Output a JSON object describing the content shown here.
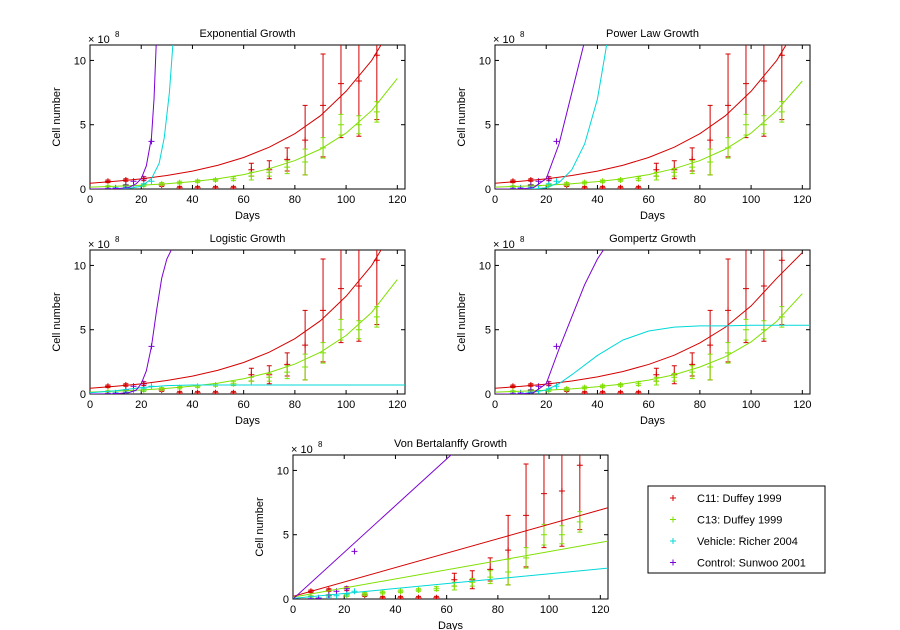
{
  "chart_data": {
    "type": "scatter",
    "xlim": [
      0,
      123
    ],
    "ylim": [
      0,
      11.2
    ],
    "xticks": [
      0,
      20,
      40,
      60,
      80,
      100,
      120
    ],
    "yticks": [
      0,
      5,
      10
    ],
    "y_multiplier": "× 10",
    "y_exponent": "8",
    "legend": "lower right",
    "series": [
      {
        "name": "C11: Duffey 1999",
        "color": "#d40000",
        "x": [
          7,
          14,
          21,
          28,
          35,
          42,
          49,
          56,
          63,
          70,
          77,
          84,
          91,
          98,
          105,
          112
        ],
        "values": [
          0.6,
          0.7,
          0.8,
          0.3,
          0.1,
          0.1,
          0.1,
          0.1,
          1.5,
          1.5,
          2.3,
          3.8,
          6.5,
          8.2,
          8.4,
          10.4
        ],
        "errors": [
          0.1,
          0.1,
          0.15,
          0.1,
          0.1,
          0.1,
          0.1,
          0.1,
          0.5,
          0.7,
          0.9,
          2.7,
          4.0,
          4.2,
          4.3,
          5.0
        ]
      },
      {
        "name": "C13: Duffey 1999",
        "color": "#7fe000",
        "x": [
          7,
          14,
          21,
          28,
          35,
          42,
          49,
          56,
          63,
          70,
          77,
          84,
          91,
          98,
          105,
          112
        ],
        "values": [
          0.2,
          0.3,
          0.3,
          0.4,
          0.5,
          0.6,
          0.7,
          0.8,
          1.0,
          1.3,
          1.7,
          2.1,
          3.2,
          5.0,
          5.0,
          6.0
        ],
        "errors": [
          0.05,
          0.05,
          0.1,
          0.1,
          0.1,
          0.1,
          0.1,
          0.15,
          0.3,
          0.3,
          0.5,
          1.0,
          0.8,
          0.8,
          0.7,
          0.8
        ]
      },
      {
        "name": "Vehicle: Richer 2004",
        "color": "#00d8d8",
        "x": [
          7,
          10,
          14,
          17,
          21,
          24
        ],
        "values": [
          0.05,
          0.1,
          0.15,
          0.25,
          0.4,
          0.6
        ]
      },
      {
        "name": "Control: Sunwoo 2001",
        "color": "#7a00d4",
        "x": [
          7,
          10,
          14,
          17,
          21,
          24
        ],
        "values": [
          0.02,
          0.05,
          0.3,
          0.6,
          0.8,
          3.7
        ]
      }
    ],
    "panels": [
      {
        "title": "Exponential Growth",
        "xlabel": "Days",
        "ylabel": "Cell number",
        "fits": [
          {
            "color": "#d40000",
            "x": [
              0,
              10,
              20,
              30,
              40,
              50,
              60,
              70,
              80,
              90,
              100,
              110,
              120
            ],
            "values": [
              0.45,
              0.6,
              0.79,
              1.05,
              1.39,
              1.85,
              2.45,
              3.25,
              4.3,
              5.7,
              7.6,
              10.0,
              13.3
            ]
          },
          {
            "color": "#7fe000",
            "x": [
              0,
              10,
              20,
              30,
              40,
              50,
              60,
              70,
              80,
              90,
              100,
              110,
              120
            ],
            "values": [
              0.15,
              0.21,
              0.29,
              0.41,
              0.57,
              0.8,
              1.12,
              1.58,
              2.21,
              3.1,
              4.35,
              6.1,
              8.6
            ]
          },
          {
            "color": "#00d8d8",
            "x": [
              0,
              10,
              15,
              20,
              24,
              27,
              29,
              31,
              33
            ],
            "values": [
              0,
              0.01,
              0.05,
              0.2,
              0.8,
              2,
              4,
              7.5,
              13
            ]
          },
          {
            "color": "#7a00d4",
            "x": [
              0,
              10,
              15,
              18,
              20,
              22,
              24,
              25,
              26
            ],
            "values": [
              0,
              0.02,
              0.1,
              0.4,
              0.8,
              1.8,
              4,
              7,
              12
            ]
          }
        ]
      },
      {
        "title": "Power Law Growth",
        "xlabel": "Days",
        "ylabel": "Cell number",
        "fits": [
          {
            "color": "#d40000",
            "x": [
              0,
              10,
              20,
              30,
              40,
              50,
              60,
              70,
              80,
              90,
              100,
              110,
              120
            ],
            "values": [
              0.45,
              0.6,
              0.79,
              1.05,
              1.39,
              1.85,
              2.45,
              3.25,
              4.3,
              5.7,
              7.6,
              10.0,
              13.3
            ]
          },
          {
            "color": "#7fe000",
            "x": [
              0,
              10,
              20,
              30,
              40,
              50,
              60,
              70,
              80,
              90,
              100,
              110,
              120
            ],
            "values": [
              0.15,
              0.21,
              0.29,
              0.41,
              0.57,
              0.8,
              1.12,
              1.58,
              2.21,
              3.1,
              4.35,
              6.1,
              8.4
            ]
          },
          {
            "color": "#00d8d8",
            "x": [
              0,
              15,
              20,
              25,
              30,
              35,
              40,
              43,
              45
            ],
            "values": [
              0,
              0,
              0.1,
              0.5,
              1.5,
              3.5,
              7,
              10.5,
              13
            ]
          },
          {
            "color": "#7a00d4",
            "x": [
              0,
              10,
              15,
              20,
              25,
              30,
              35,
              37
            ],
            "values": [
              0,
              0,
              0.1,
              0.8,
              3.5,
              7.5,
              11.5,
              13
            ]
          }
        ]
      },
      {
        "title": "Logistic Growth",
        "xlabel": "Days",
        "ylabel": "Cell number",
        "fits": [
          {
            "color": "#d40000",
            "x": [
              0,
              10,
              20,
              30,
              40,
              50,
              60,
              70,
              80,
              90,
              100,
              110,
              120
            ],
            "values": [
              0.45,
              0.6,
              0.79,
              1.05,
              1.39,
              1.85,
              2.45,
              3.25,
              4.3,
              5.7,
              7.6,
              10.0,
              13.3
            ]
          },
          {
            "color": "#7fe000",
            "x": [
              0,
              10,
              20,
              30,
              40,
              50,
              60,
              70,
              80,
              90,
              100,
              110,
              120
            ],
            "values": [
              0.15,
              0.22,
              0.31,
              0.44,
              0.61,
              0.85,
              1.19,
              1.67,
              2.33,
              3.25,
              4.55,
              6.35,
              8.9
            ]
          },
          {
            "color": "#00d8d8",
            "x": [
              0,
              10,
              20,
              30,
              40,
              60,
              80,
              100,
              125
            ],
            "values": [
              0.1,
              0.25,
              0.5,
              0.65,
              0.7,
              0.7,
              0.7,
              0.7,
              0.7
            ]
          },
          {
            "color": "#7a00d4",
            "x": [
              0,
              10,
              15,
              18,
              20,
              22,
              24,
              26,
              28,
              30,
              32
            ],
            "values": [
              0,
              0.02,
              0.1,
              0.3,
              0.8,
              1.8,
              3.7,
              6.5,
              9,
              10.5,
              11.3
            ]
          }
        ]
      },
      {
        "title": "Gompertz Growth",
        "xlabel": "Days",
        "ylabel": "Cell number",
        "fits": [
          {
            "color": "#d40000",
            "x": [
              0,
              10,
              20,
              30,
              40,
              50,
              60,
              70,
              80,
              90,
              100,
              110,
              120
            ],
            "values": [
              0.45,
              0.59,
              0.77,
              1.01,
              1.33,
              1.75,
              2.3,
              3.02,
              3.97,
              5.2,
              6.85,
              9.0,
              11.0
            ]
          },
          {
            "color": "#7fe000",
            "x": [
              0,
              10,
              20,
              30,
              40,
              50,
              60,
              70,
              80,
              90,
              100,
              110,
              120
            ],
            "values": [
              0.15,
              0.21,
              0.29,
              0.4,
              0.56,
              0.78,
              1.08,
              1.5,
              2.1,
              2.9,
              4.05,
              5.65,
              7.8
            ]
          },
          {
            "color": "#00d8d8",
            "x": [
              0,
              10,
              20,
              25,
              30,
              40,
              50,
              60,
              70,
              80,
              90,
              100,
              125
            ],
            "values": [
              0,
              0,
              0.3,
              0.8,
              1.5,
              3.0,
              4.2,
              4.9,
              5.2,
              5.3,
              5.3,
              5.35,
              5.35
            ]
          },
          {
            "color": "#7a00d4",
            "x": [
              0,
              10,
              15,
              20,
              25,
              30,
              35,
              40,
              45
            ],
            "values": [
              0,
              0,
              0.1,
              0.8,
              3.5,
              6,
              8.5,
              10.5,
              12
            ]
          }
        ]
      },
      {
        "title": "Von Bertalanffy Growth",
        "xlabel": "Days",
        "ylabel": "Cell number",
        "fits": [
          {
            "color": "#d40000",
            "x": [
              0,
              123
            ],
            "values": [
              0.2,
              7.1
            ]
          },
          {
            "color": "#7fe000",
            "x": [
              0,
              123
            ],
            "values": [
              0.15,
              4.5
            ]
          },
          {
            "color": "#00d8d8",
            "x": [
              0,
              123
            ],
            "values": [
              0.05,
              2.4
            ]
          },
          {
            "color": "#7a00d4",
            "x": [
              0,
              65
            ],
            "values": [
              0,
              11.8
            ]
          }
        ]
      }
    ]
  }
}
